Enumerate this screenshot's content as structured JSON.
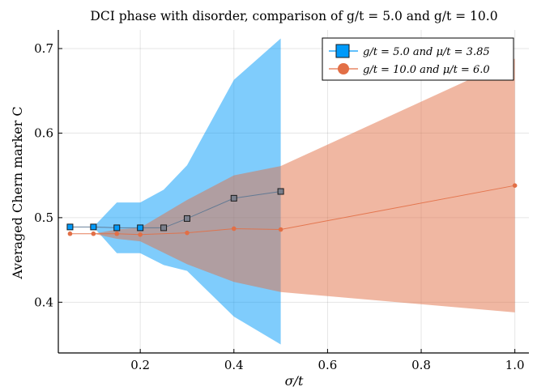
{
  "chart_data": {
    "type": "line",
    "title": "DCI phase with disorder, comparison of g/t = 5.0 and g/t = 10.0",
    "xlabel": "σ/t",
    "ylabel": "Averaged Chern marker C",
    "xlim": [
      0.025,
      1.03
    ],
    "ylim": [
      0.34,
      0.722
    ],
    "xticks": [
      0.2,
      0.4,
      0.6,
      0.8,
      1.0
    ],
    "xtick_labels": [
      "0.2",
      "0.4",
      "0.6",
      "0.8",
      "1.0"
    ],
    "yticks": [
      0.4,
      0.5,
      0.6,
      0.7
    ],
    "ytick_labels": [
      "0.4",
      "0.5",
      "0.6",
      "0.7"
    ],
    "grid": true,
    "legend_position": "top-right",
    "series": [
      {
        "name": "g/t = 5.0 and μ/t = 3.85",
        "color": "#009af9",
        "marker": "square",
        "x": [
          0.05,
          0.1,
          0.15,
          0.2,
          0.25,
          0.3,
          0.4,
          0.5
        ],
        "y": [
          0.489,
          0.489,
          0.488,
          0.488,
          0.488,
          0.499,
          0.523,
          0.531
        ],
        "band_lower": [
          0.489,
          0.489,
          0.458,
          0.458,
          0.444,
          0.437,
          0.383,
          0.35
        ],
        "band_upper": [
          0.489,
          0.489,
          0.518,
          0.518,
          0.533,
          0.562,
          0.663,
          0.712
        ]
      },
      {
        "name": "g/t = 10.0 and μ/t = 6.0",
        "color": "#e26f46",
        "marker": "circle",
        "x": [
          0.05,
          0.1,
          0.15,
          0.2,
          0.3,
          0.4,
          0.5,
          1.0
        ],
        "y": [
          0.481,
          0.481,
          0.481,
          0.48,
          0.482,
          0.487,
          0.486,
          0.538
        ],
        "band_lower": [
          0.481,
          0.481,
          0.475,
          0.472,
          0.445,
          0.424,
          0.412,
          0.388
        ],
        "band_upper": [
          0.481,
          0.481,
          0.486,
          0.488,
          0.521,
          0.55,
          0.561,
          0.688
        ]
      }
    ]
  }
}
